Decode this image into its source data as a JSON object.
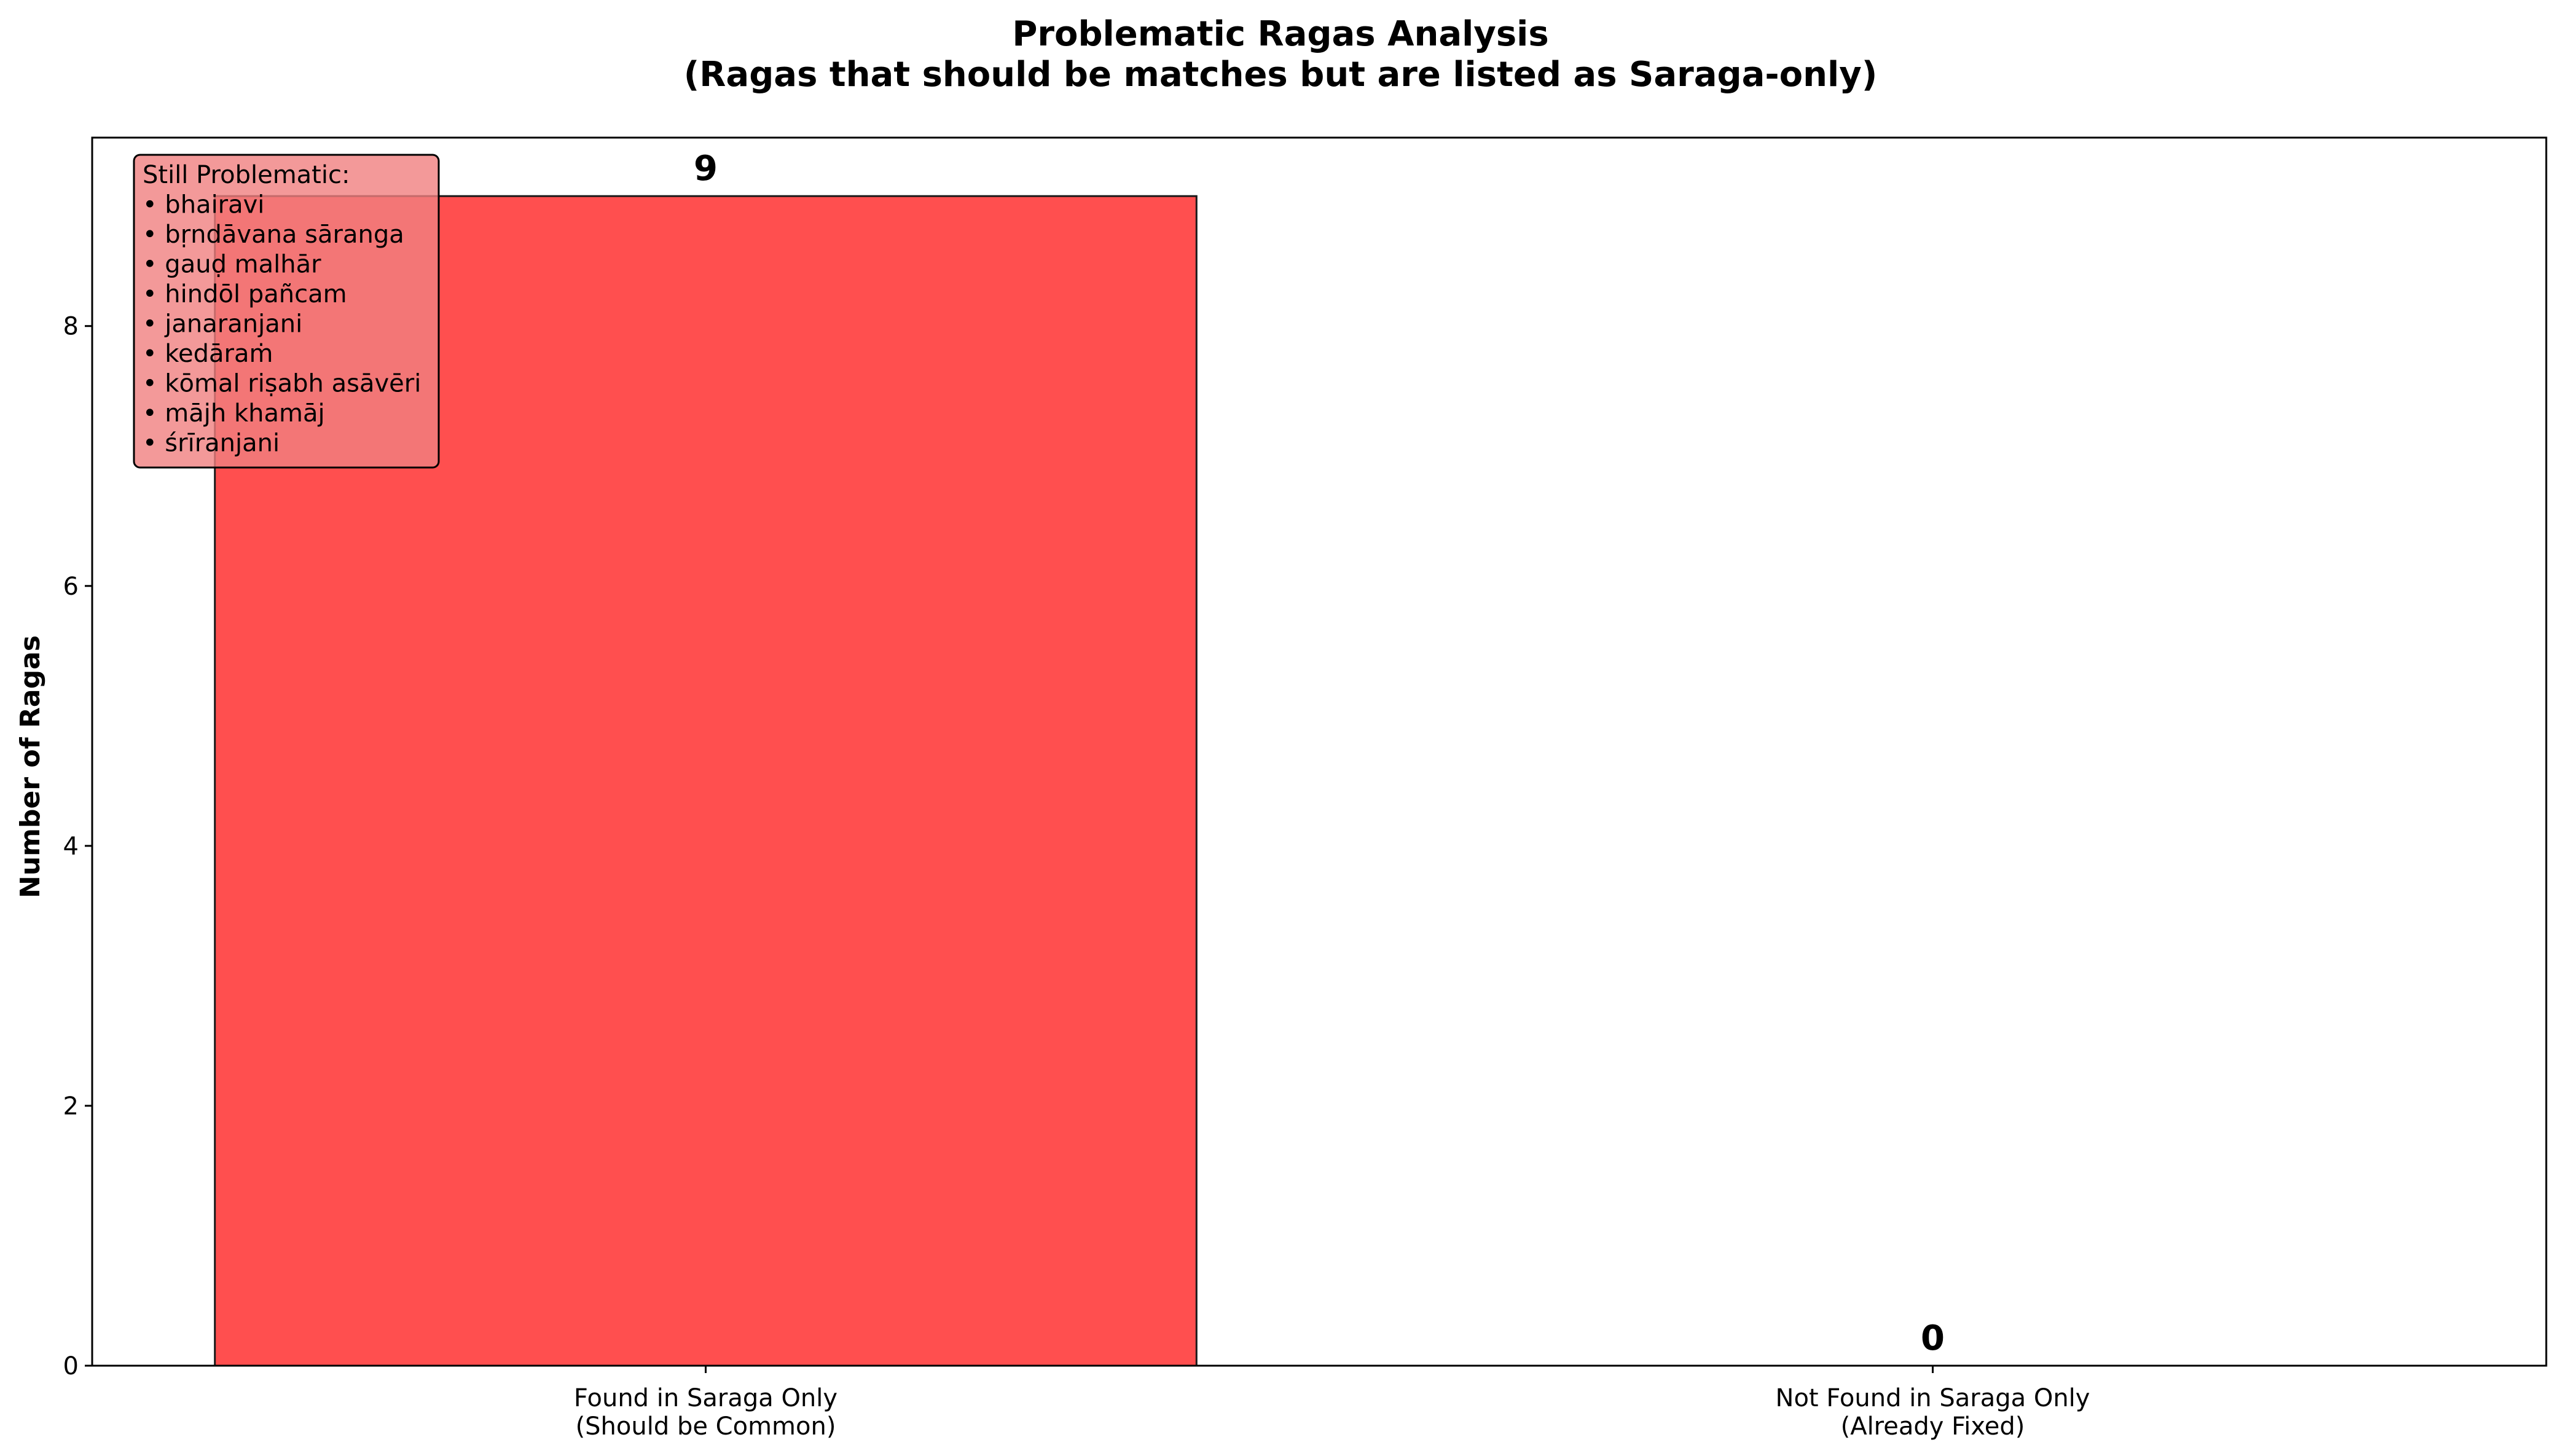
{
  "chart_data": {
    "type": "bar",
    "title": "Problematic Ragas Analysis",
    "subtitle": "(Ragas that should be matches but are listed as Saraga-only)",
    "xlabel": "",
    "ylabel": "Number of Ragas",
    "ylim": [
      0,
      9.45
    ],
    "yticks": [
      "0",
      "2",
      "4",
      "6",
      "8"
    ],
    "categories": [
      [
        "Found in Saraga Only",
        "(Should be Common)"
      ],
      [
        "Not Found in Saraga Only",
        "(Already Fixed)"
      ]
    ],
    "values": [
      9,
      0
    ],
    "value_labels": [
      "9",
      "0"
    ],
    "bar_color": "#ff4f4f",
    "bar_edge_color": "#1a1a1a",
    "grid": false,
    "annotation": {
      "placement": "top-left",
      "background": "#f08080",
      "title": "Still Problematic:",
      "items": [
        "• bhairavi",
        "• bṛndāvana sāranga",
        "• gauḍ malhār",
        "• hindōl pañcam",
        "• janaranjani",
        "• kedāraṁ",
        "• kōmal riṣabh asāvēri",
        "• mājh khamāj",
        "• śrīranjani"
      ]
    }
  }
}
